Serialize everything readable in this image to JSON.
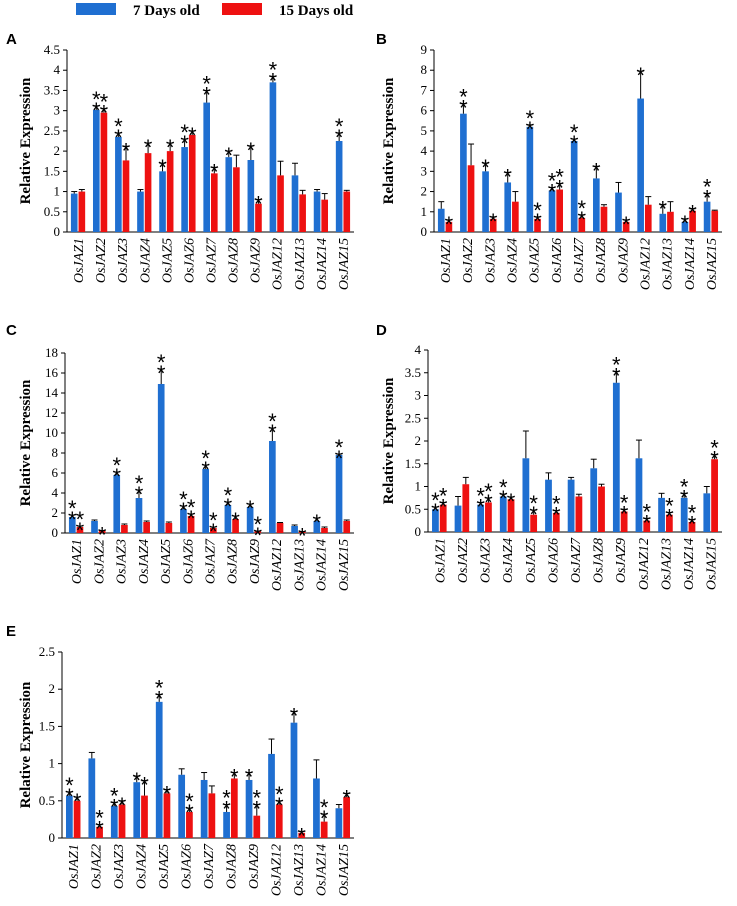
{
  "legend": [
    {
      "label": "7 Days old",
      "color": "#1f6fd1"
    },
    {
      "label": "15 Days old",
      "color": "#ee1111"
    }
  ],
  "chart_data": [
    {
      "panel": "A",
      "type": "bar",
      "ylabel": "Relative Expression",
      "ylim": [
        0,
        4.5
      ],
      "yticks": [
        "0",
        "0.5",
        "1",
        "1.5",
        "2",
        "2.5",
        "3",
        "3.5",
        "4",
        "4.5"
      ],
      "categories": [
        "OsJAZ1",
        "OsJAZ2",
        "OsJAZ3",
        "OsJAZ4",
        "OsJAZ5",
        "OsJAZ6",
        "OsJAZ7",
        "OsJAZ8",
        "OsJAZ9",
        "OsJAZ12",
        "OsJAZ13",
        "OsJAZ14",
        "OsJAZ15"
      ],
      "series": [
        {
          "name": "7 Days old",
          "values": [
            0.95,
            3.02,
            2.35,
            1.0,
            1.5,
            2.1,
            3.2,
            1.85,
            1.78,
            3.7,
            1.4,
            1.0,
            2.25
          ],
          "errors": [
            0.05,
            0.1,
            0.1,
            0.05,
            0.2,
            0.2,
            0.3,
            0.15,
            0.35,
            0.15,
            0.3,
            0.05,
            0.2
          ],
          "stars": [
            "",
            "**",
            "**",
            "",
            "*",
            "**",
            "**",
            "*",
            "*",
            "**",
            "",
            "",
            "**"
          ]
        },
        {
          "name": "15 Days old",
          "values": [
            1.0,
            2.95,
            1.77,
            1.95,
            2.0,
            2.4,
            1.45,
            1.6,
            0.7,
            1.4,
            0.93,
            0.8,
            1.0
          ],
          "errors": [
            0.05,
            0.1,
            0.35,
            0.25,
            0.2,
            0.1,
            0.15,
            0.3,
            0.1,
            0.35,
            0.1,
            0.15,
            0.03
          ],
          "stars": [
            "",
            "**",
            "*",
            "*",
            "*",
            "*",
            "*",
            "",
            "*",
            "",
            "",
            "",
            ""
          ]
        }
      ]
    },
    {
      "panel": "B",
      "type": "bar",
      "ylabel": "Relative Expression",
      "ylim": [
        0,
        9
      ],
      "yticks": [
        "0",
        "1",
        "2",
        "3",
        "4",
        "5",
        "6",
        "7",
        "8",
        "9"
      ],
      "categories": [
        "OsJAZ1",
        "OsJAZ2",
        "OsJAZ3",
        "OsJAZ4",
        "OsJAZ5",
        "OsJAZ6",
        "OsJAZ7",
        "OsJAZ8",
        "OsJAZ9",
        "OsJAZ12",
        "OsJAZ13",
        "OsJAZ14",
        "OsJAZ15"
      ],
      "series": [
        {
          "name": "7 Days old",
          "values": [
            1.15,
            5.85,
            3.0,
            2.45,
            5.2,
            2.05,
            4.5,
            2.65,
            1.95,
            6.6,
            0.9,
            0.5,
            1.5
          ],
          "errors": [
            0.35,
            0.5,
            0.4,
            0.5,
            0.1,
            0.15,
            0.1,
            0.6,
            0.5,
            1.35,
            0.45,
            0.15,
            0.4
          ],
          "stars": [
            "",
            "**",
            "*",
            "*",
            "**",
            "**",
            "**",
            "*",
            "",
            "*",
            "*",
            "*",
            "**"
          ]
        },
        {
          "name": "15 Days old",
          "values": [
            0.5,
            3.3,
            0.65,
            1.5,
            0.65,
            2.1,
            0.7,
            1.25,
            0.5,
            1.35,
            1.0,
            1.05,
            1.05
          ],
          "errors": [
            0.1,
            1.05,
            0.1,
            0.5,
            0.1,
            0.3,
            0.15,
            0.1,
            0.1,
            0.4,
            0.5,
            0.1,
            0.03
          ],
          "stars": [
            "*",
            "",
            "*",
            "",
            "**",
            "**",
            "**",
            "",
            "*",
            "",
            "",
            "*",
            ""
          ]
        }
      ]
    },
    {
      "panel": "C",
      "type": "bar",
      "ylabel": "Relative Expression",
      "ylim": [
        0,
        18
      ],
      "yticks": [
        "0",
        "2",
        "4",
        "6",
        "8",
        "10",
        "12",
        "14",
        "16",
        "18"
      ],
      "categories": [
        "OsJAZ1",
        "OsJAZ2",
        "OsJAZ3",
        "OsJAZ4",
        "OsJAZ5",
        "OsJAZ6",
        "OsJAZ7",
        "OsJAZ8",
        "OsJAZ9",
        "OsJAZ12",
        "OsJAZ13",
        "OsJAZ14",
        "OsJAZ15"
      ],
      "series": [
        {
          "name": "7 Days old",
          "values": [
            1.6,
            1.2,
            5.8,
            3.5,
            14.9,
            2.4,
            6.4,
            2.8,
            2.6,
            9.2,
            0.7,
            1.2,
            7.8
          ],
          "errors": [
            0.2,
            0.1,
            0.3,
            0.8,
            1.5,
            0.3,
            0.4,
            0.3,
            0.3,
            1.3,
            0.1,
            0.3,
            0.1
          ],
          "stars": [
            "**",
            "",
            "**",
            "**",
            "**",
            "**",
            "**",
            "**",
            "*",
            "**",
            "",
            "*",
            "**"
          ]
        },
        {
          "name": "15 Days old",
          "values": [
            0.6,
            0.2,
            0.8,
            1.1,
            1.0,
            1.7,
            0.5,
            1.4,
            0.15,
            1.0,
            0.1,
            0.5,
            1.2
          ],
          "errors": [
            0.1,
            0.05,
            0.1,
            0.1,
            0.1,
            0.2,
            0.1,
            0.3,
            0.05,
            0.05,
            0.05,
            0.1,
            0.1
          ],
          "stars": [
            "**",
            "*",
            "",
            "",
            "",
            "**",
            "**",
            "*",
            "**",
            "",
            "*",
            "",
            ""
          ]
        }
      ]
    },
    {
      "panel": "D",
      "type": "bar",
      "ylabel": "Relative Expression",
      "ylim": [
        0,
        4
      ],
      "yticks": [
        "0",
        "0.5",
        "1",
        "1.5",
        "2",
        "2.5",
        "3",
        "3.5",
        "4"
      ],
      "categories": [
        "OsJAZ1",
        "OsJAZ2",
        "OsJAZ3",
        "OsJAZ4",
        "OsJAZ5",
        "OsJAZ6",
        "OsJAZ7",
        "OsJAZ8",
        "OsJAZ9",
        "OsJAZ12",
        "OsJAZ13",
        "OsJAZ14",
        "OsJAZ15"
      ],
      "series": [
        {
          "name": "7 Days old",
          "values": [
            0.5,
            0.58,
            0.6,
            0.78,
            1.62,
            1.15,
            1.15,
            1.4,
            3.28,
            1.62,
            0.75,
            0.75,
            0.85
          ],
          "errors": [
            0.05,
            0.2,
            0.05,
            0.05,
            0.6,
            0.15,
            0.05,
            0.2,
            0.25,
            0.4,
            0.1,
            0.1,
            0.15
          ],
          "stars": [
            "**",
            "",
            "**",
            "**",
            "",
            "",
            "",
            "",
            "**",
            "",
            "",
            "**",
            ""
          ]
        },
        {
          "name": "15 Days old",
          "values": [
            0.6,
            1.05,
            0.65,
            0.72,
            0.38,
            0.42,
            0.78,
            1.0,
            0.45,
            0.25,
            0.38,
            0.22,
            1.6
          ],
          "errors": [
            0.05,
            0.15,
            0.1,
            0.05,
            0.1,
            0.05,
            0.05,
            0.05,
            0.05,
            0.05,
            0.05,
            0.05,
            0.1
          ],
          "stars": [
            "**",
            "",
            "**",
            "*",
            "**",
            "**",
            "",
            "",
            "**",
            "**",
            "**",
            "**",
            "**"
          ]
        }
      ]
    },
    {
      "panel": "E",
      "type": "bar",
      "ylabel": "Relative Expression",
      "ylim": [
        0,
        2.5
      ],
      "yticks": [
        "0",
        "0.5",
        "1",
        "1.5",
        "2",
        "2.5"
      ],
      "categories": [
        "OsJAZ1",
        "OsJAZ2",
        "OsJAZ3",
        "OsJAZ4",
        "OsJAZ5",
        "OsJAZ6",
        "OsJAZ7",
        "OsJAZ8",
        "OsJAZ9",
        "OsJAZ12",
        "OsJAZ13",
        "OsJAZ14",
        "OsJAZ15"
      ],
      "series": [
        {
          "name": "7 Days old",
          "values": [
            0.57,
            1.07,
            0.43,
            0.75,
            1.83,
            0.85,
            0.78,
            0.35,
            0.78,
            1.13,
            1.55,
            0.8,
            0.4
          ],
          "errors": [
            0.05,
            0.08,
            0.05,
            0.08,
            0.1,
            0.08,
            0.1,
            0.1,
            0.1,
            0.2,
            0.15,
            0.25,
            0.05
          ],
          "stars": [
            "**",
            "",
            "**",
            "*",
            "**",
            "",
            "",
            "**",
            "*",
            "",
            "*",
            "",
            ""
          ]
        },
        {
          "name": "15 Days old",
          "values": [
            0.5,
            0.15,
            0.45,
            0.57,
            0.6,
            0.35,
            0.6,
            0.8,
            0.3,
            0.45,
            0.07,
            0.22,
            0.55
          ],
          "errors": [
            0.05,
            0.03,
            0.05,
            0.2,
            0.05,
            0.05,
            0.1,
            0.08,
            0.15,
            0.05,
            0.02,
            0.1,
            0.05
          ],
          "stars": [
            "*",
            "**",
            "*",
            "*",
            "*",
            "**",
            "",
            "*",
            "**",
            "**",
            "*",
            "**",
            "*"
          ]
        }
      ]
    }
  ]
}
